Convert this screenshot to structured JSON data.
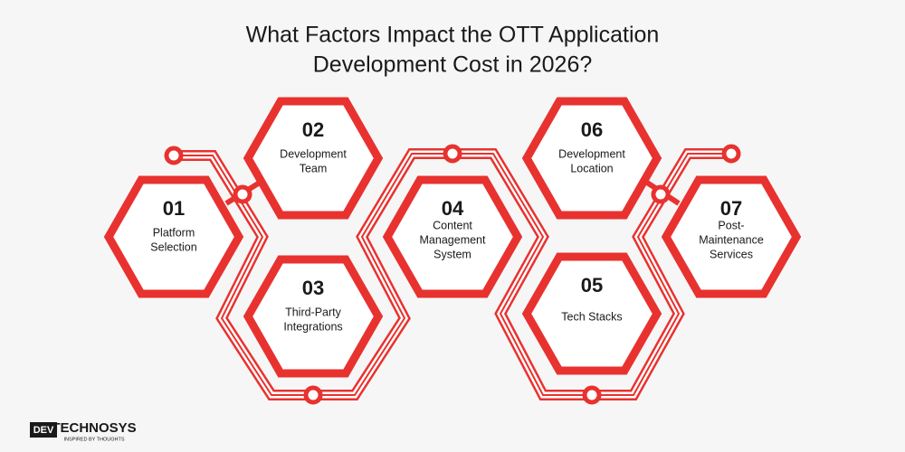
{
  "title": [
    "What Factors Impact the OTT Application",
    "Development Cost in 2026?"
  ],
  "nodes": [
    {
      "number": "01",
      "label": [
        "Platform",
        "Selection"
      ]
    },
    {
      "number": "02",
      "label": [
        "Development",
        "Team"
      ]
    },
    {
      "number": "03",
      "label": [
        "Third-Party",
        "Integrations"
      ]
    },
    {
      "number": "04",
      "label": [
        "Content",
        "Management",
        "System"
      ]
    },
    {
      "number": "05",
      "label": [
        "Tech Stacks"
      ]
    },
    {
      "number": "06",
      "label": [
        "Development",
        "Location"
      ]
    },
    {
      "number": "07",
      "label": [
        "Post-",
        "Maintenance",
        "Services"
      ]
    }
  ],
  "logo": {
    "mark": "DEV",
    "name": "TECHNOSYS",
    "tagline": "INSPIRED BY THOUGHTS"
  }
}
